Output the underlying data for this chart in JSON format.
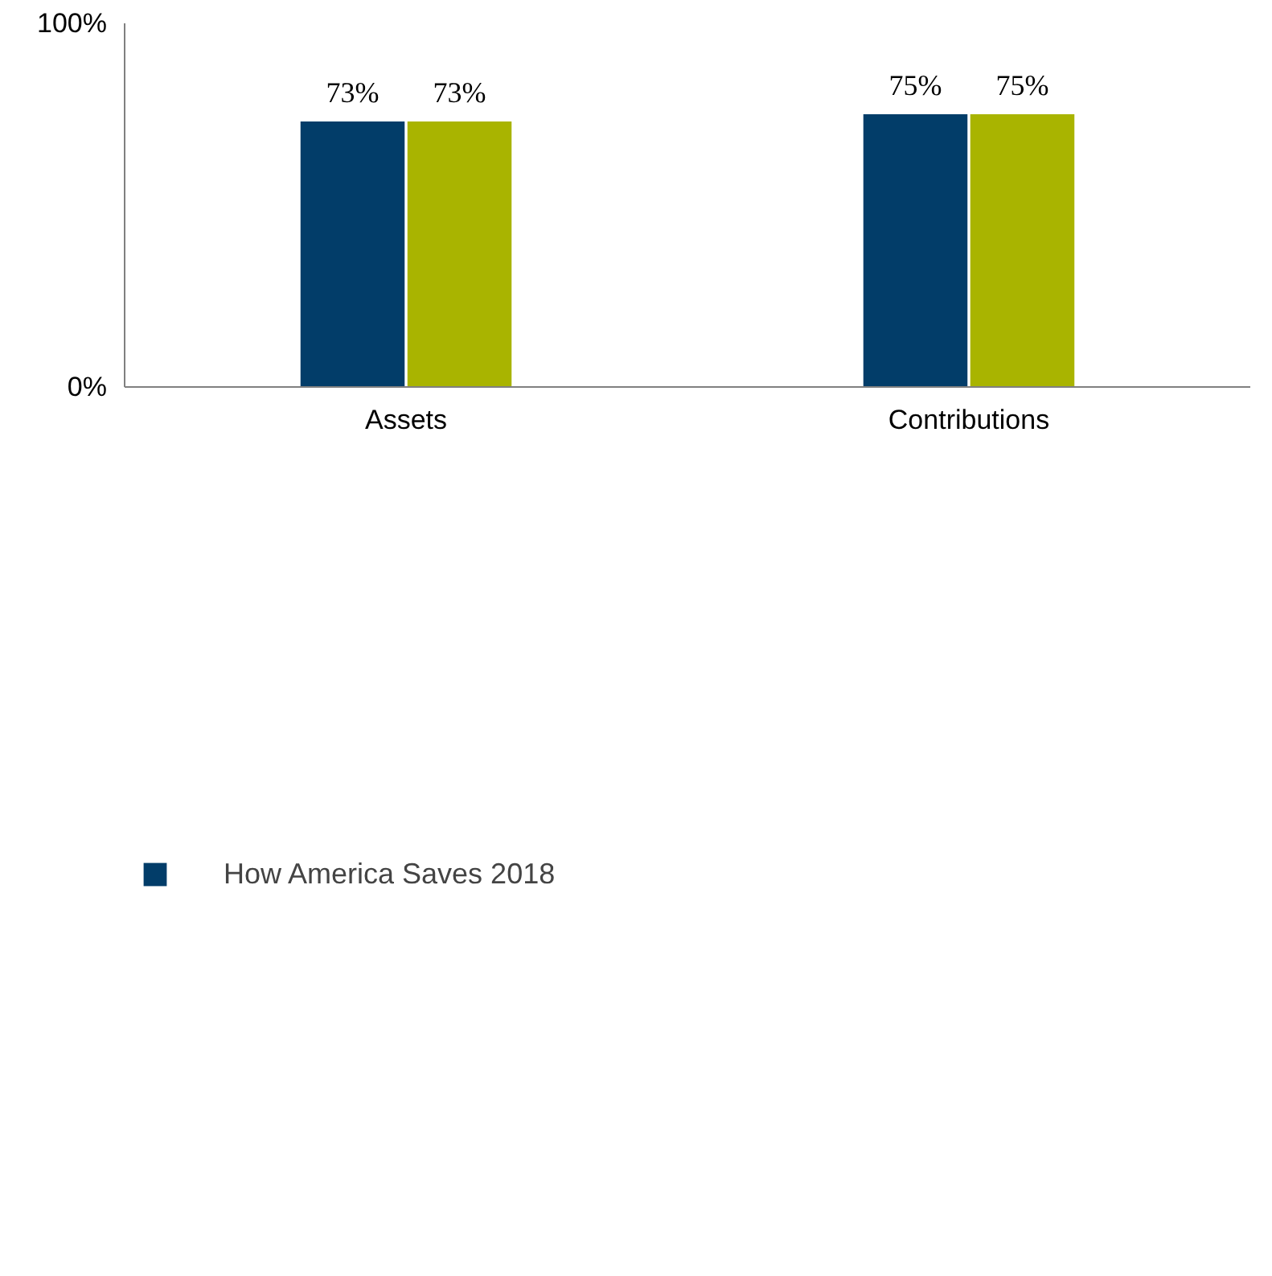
{
  "chart_data": {
    "type": "bar",
    "categories": [
      "Assets",
      "Contributions"
    ],
    "series": [
      {
        "name": "How America Saves 2018",
        "color": "#023d69",
        "values": [
          73,
          75
        ],
        "value_labels": [
          "73%",
          "75%"
        ]
      },
      {
        "color": "#a9b400",
        "values": [
          73,
          75
        ],
        "value_labels": [
          "73%",
          "75%"
        ]
      }
    ],
    "ylim": [
      0,
      100
    ],
    "yticks": [
      {
        "value": 0,
        "label": "0%"
      },
      {
        "value": 100,
        "label": "100%"
      }
    ],
    "grid": false,
    "legend": "bottom"
  }
}
